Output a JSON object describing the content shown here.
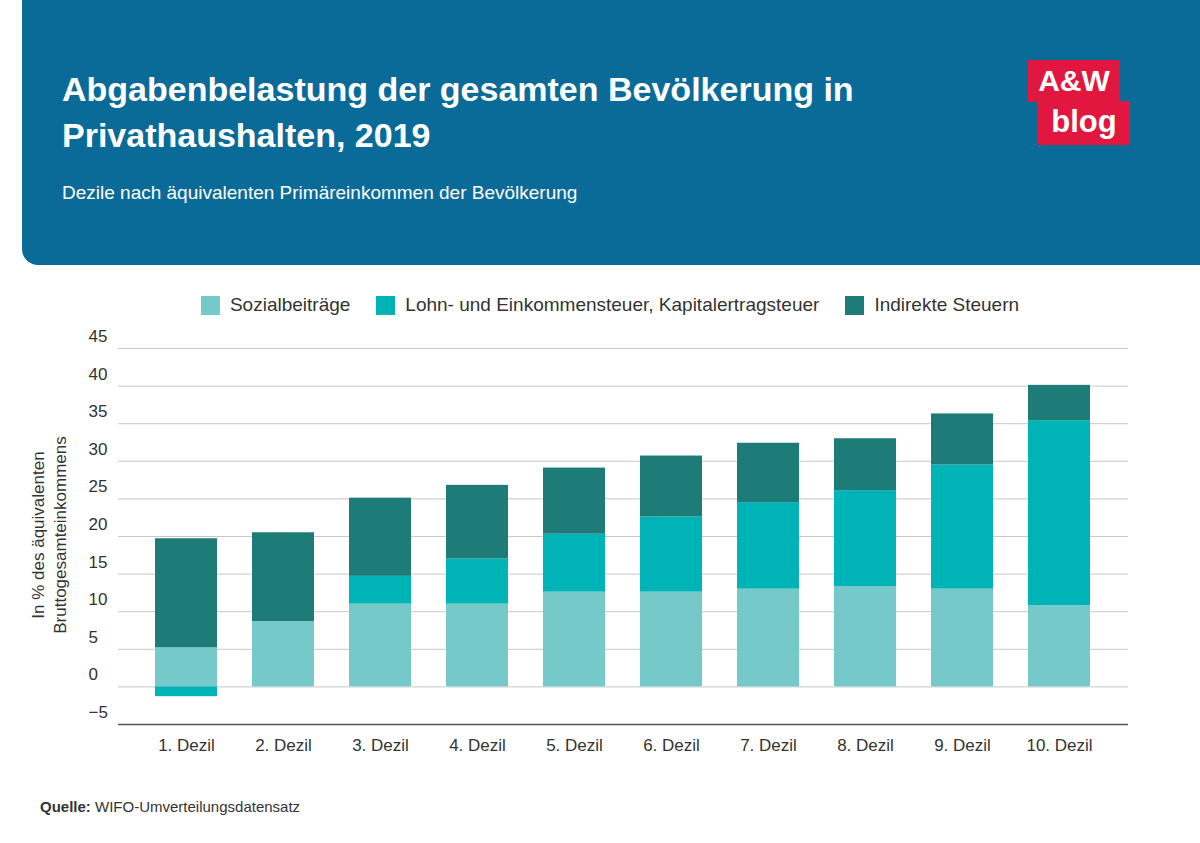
{
  "chart_data": {
    "type": "bar",
    "stacked": true,
    "title": "Abgabenbelastung der gesamten Bevölkerung in Privathaushalten, 2019",
    "subtitle": "Dezile nach äquivalenten Primäreinkommen der Bevölkerung",
    "y_label": "In % des äquivalenten Bruttogesamteinkommens",
    "source": "Quelle: WIFO-Umverteilungsdatensatz",
    "logo": [
      "A&W",
      "blog"
    ],
    "categories": [
      "1. Dezil",
      "2. Dezil",
      "3. Dezil",
      "4. Dezil",
      "5. Dezil",
      "6. Dezil",
      "7. Dezil",
      "8. Dezil",
      "9. Dezil",
      "10. Dezil"
    ],
    "series": [
      {
        "name": "Sozialbeiträge",
        "color": "#76c9c9",
        "values": [
          5.2,
          8.7,
          11.0,
          11.0,
          12.6,
          12.6,
          13.0,
          13.3,
          13.0,
          10.8
        ]
      },
      {
        "name": "Lohn- und Einkommensteuer, Kapitalertragsteuer",
        "color": "#00b3b6",
        "values": [
          -1.3,
          0,
          3.7,
          6.0,
          7.7,
          10.0,
          11.5,
          12.8,
          16.5,
          24.6
        ]
      },
      {
        "name": "Indirekte Steuern",
        "color": "#1e7c78",
        "values": [
          14.5,
          11.8,
          10.4,
          9.8,
          8.8,
          8.1,
          7.9,
          6.9,
          6.8,
          4.7
        ]
      }
    ],
    "ylim": [
      -5,
      45
    ],
    "yticks": [
      -5,
      0,
      5,
      10,
      15,
      20,
      25,
      30,
      35,
      40,
      45
    ],
    "grid": true,
    "legend": "top"
  }
}
